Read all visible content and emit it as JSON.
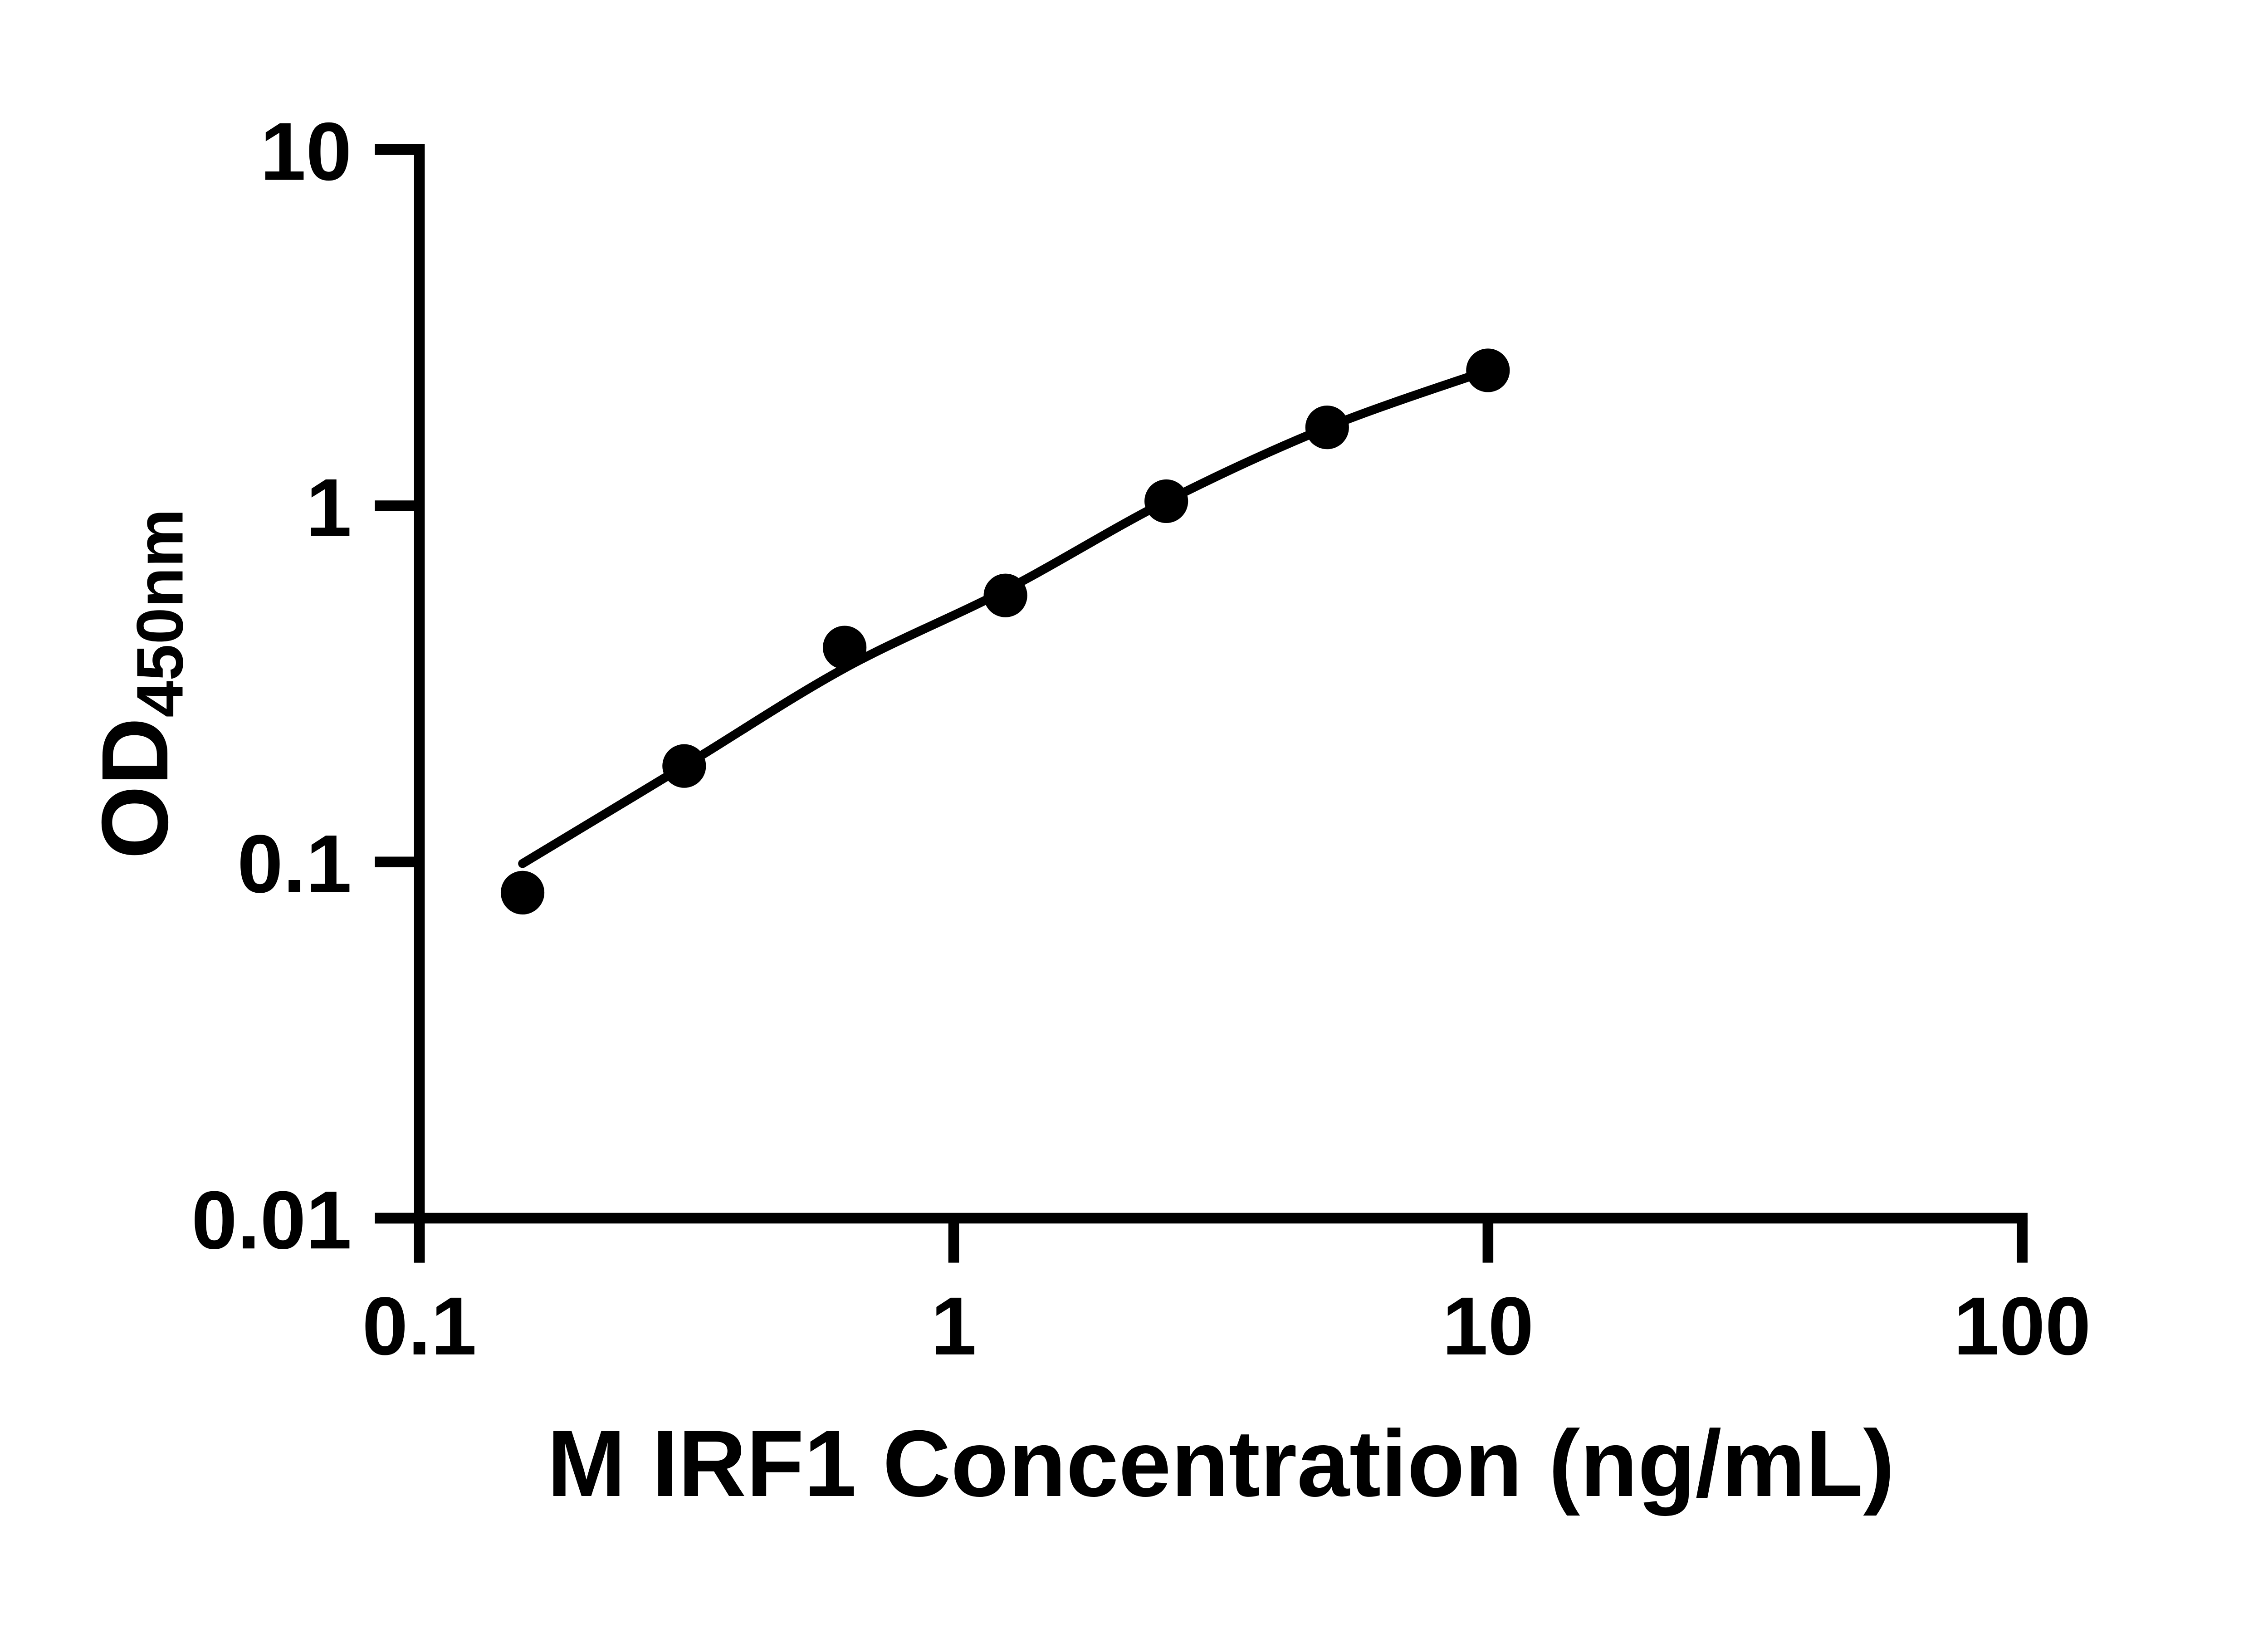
{
  "figure": {
    "background_color": "#ffffff",
    "ink_color": "#000000"
  },
  "chart_data": {
    "type": "scatter",
    "title": "",
    "xlabel": "M IRF1 Concentration (ng/mL)",
    "ylabel_main": "OD",
    "ylabel_subscript": "450nm",
    "x_scale": "log10",
    "y_scale": "log10",
    "xlim": [
      0.1,
      100
    ],
    "ylim": [
      0.01,
      10
    ],
    "grid": false,
    "legend": "none",
    "x_ticks": [
      {
        "value": 0.1,
        "label": "0.1"
      },
      {
        "value": 1,
        "label": "1"
      },
      {
        "value": 10,
        "label": "10"
      },
      {
        "value": 100,
        "label": "100"
      }
    ],
    "y_ticks": [
      {
        "value": 0.01,
        "label": "0.01"
      },
      {
        "value": 0.1,
        "label": "0.1"
      },
      {
        "value": 1,
        "label": "1"
      },
      {
        "value": 10,
        "label": "10"
      }
    ],
    "series": [
      {
        "name": "standard data points",
        "type": "scatter",
        "marker": "filled-circle",
        "color": "#000000",
        "x": [
          0.156,
          0.313,
          0.625,
          1.25,
          2.5,
          5,
          10
        ],
        "y": [
          0.082,
          0.186,
          0.4,
          0.56,
          1.03,
          1.66,
          2.4
        ]
      },
      {
        "name": "fitted standard curve",
        "type": "line",
        "color": "#000000",
        "x": [
          0.156,
          0.313,
          0.625,
          1.25,
          2.5,
          5,
          10
        ],
        "y": [
          0.099,
          0.186,
          0.35,
          0.58,
          1.03,
          1.66,
          2.4
        ]
      }
    ]
  }
}
